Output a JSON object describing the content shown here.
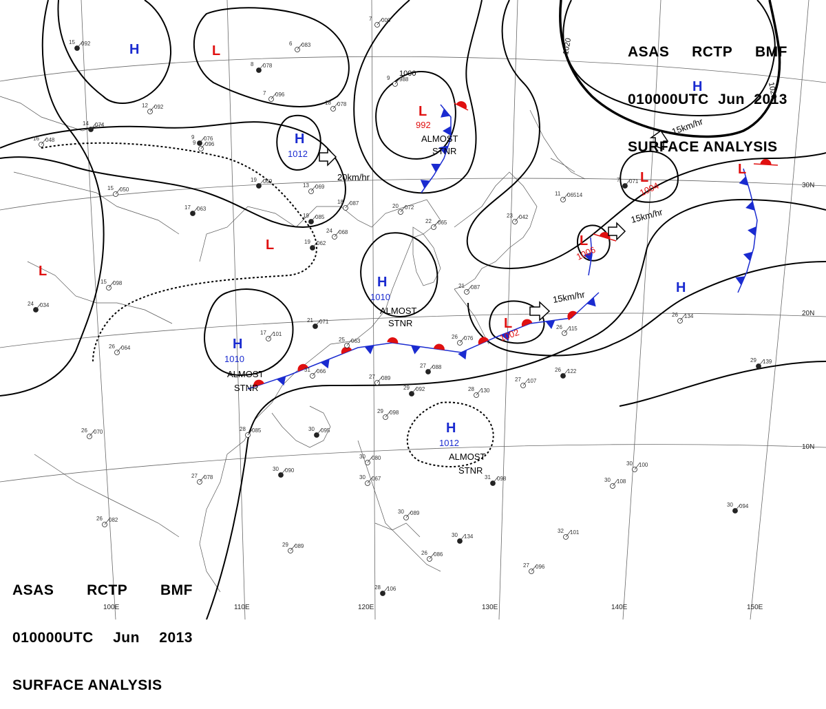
{
  "header": {
    "line1": [
      "ASAS",
      "RCTP",
      "BMF"
    ],
    "line2": [
      "010000UTC",
      "Jun",
      "2013"
    ],
    "line3": "SURFACE ANALYSIS"
  },
  "longitude_labels": [
    "100E",
    "110E",
    "120E",
    "130E",
    "140E",
    "150E"
  ],
  "latitude_labels": [
    "30N",
    "20N",
    "10N"
  ],
  "isobar_labels": [
    "1000",
    "1020",
    "1020"
  ],
  "pressure_centers": [
    {
      "type": "H",
      "value": ""
    },
    {
      "type": "L",
      "value": ""
    },
    {
      "type": "H",
      "value": "1012"
    },
    {
      "type": "L",
      "value": "992"
    },
    {
      "type": "H",
      "value": ""
    },
    {
      "type": "L",
      "value": ""
    },
    {
      "type": "L",
      "value": ""
    },
    {
      "type": "H",
      "value": "1010"
    },
    {
      "type": "H",
      "value": "1010"
    },
    {
      "type": "L",
      "value": "1004"
    },
    {
      "type": "L",
      "value": "1006"
    },
    {
      "type": "L",
      "value": "1002"
    },
    {
      "type": "L",
      "value": ""
    },
    {
      "type": "H",
      "value": ""
    },
    {
      "type": "H",
      "value": "1012"
    }
  ],
  "movement_labels": [
    "20km/hr",
    "15km/hr",
    "15km/hr",
    "15km/hr"
  ],
  "status_labels": [
    {
      "line1": "ALMOST",
      "line2": "STNR"
    },
    {
      "line1": "ALMOST",
      "line2": "STNR"
    },
    {
      "line1": "ALMOST",
      "line2": "STNR"
    },
    {
      "line1": "ALMOST",
      "line2": "STNR"
    }
  ],
  "stations": [
    {
      "t": "15",
      "p": "092"
    },
    {
      "t": "6",
      "p": "083"
    },
    {
      "t": "7",
      "p": "000"
    },
    {
      "t": "8",
      "p": "078"
    },
    {
      "t": "7",
      "p": "096"
    },
    {
      "t": "12",
      "p": "092"
    },
    {
      "t": "9",
      "p": "076"
    },
    {
      "t": "18",
      "p": "078"
    },
    {
      "t": "9",
      "p": "988"
    },
    {
      "t": "14",
      "p": "074"
    },
    {
      "t": "16",
      "p": "048"
    },
    {
      "t": "9",
      "p": "096"
    },
    {
      "t": "19",
      "p": "069"
    },
    {
      "t": "13",
      "p": "069"
    },
    {
      "t": "15",
      "p": "050"
    },
    {
      "t": "17",
      "p": "063"
    },
    {
      "t": "18",
      "p": "087"
    },
    {
      "t": "20",
      "p": "072"
    },
    {
      "t": "19",
      "p": "085"
    },
    {
      "t": "24",
      "p": "068"
    },
    {
      "t": "22",
      "p": "065"
    },
    {
      "t": "19",
      "p": "062"
    },
    {
      "t": "23",
      "p": "042"
    },
    {
      "t": "15",
      "p": "098"
    },
    {
      "t": "24",
      "p": "034"
    },
    {
      "t": "26",
      "p": "064"
    },
    {
      "t": "17",
      "p": "101"
    },
    {
      "t": "21",
      "p": "071"
    },
    {
      "t": "25",
      "p": "063"
    },
    {
      "t": "26",
      "p": "076"
    },
    {
      "t": "27",
      "p": "088"
    },
    {
      "t": "27",
      "p": "089"
    },
    {
      "t": "31",
      "p": "066"
    },
    {
      "t": "29",
      "p": "092"
    },
    {
      "t": "28",
      "p": "130"
    },
    {
      "t": "27",
      "p": "107"
    },
    {
      "t": "26",
      "p": "122"
    },
    {
      "t": "26",
      "p": "115"
    },
    {
      "t": "26",
      "p": "134"
    },
    {
      "t": "29",
      "p": "139"
    },
    {
      "t": "28",
      "p": "085"
    },
    {
      "t": "26",
      "p": "070"
    },
    {
      "t": "30",
      "p": "095"
    },
    {
      "t": "29",
      "p": "098"
    },
    {
      "t": "27",
      "p": "078"
    },
    {
      "t": "30",
      "p": "090"
    },
    {
      "t": "30",
      "p": "080"
    },
    {
      "t": "30",
      "p": "067"
    },
    {
      "t": "31",
      "p": "098"
    },
    {
      "t": "30",
      "p": "108"
    },
    {
      "t": "30",
      "p": "100"
    },
    {
      "t": "30",
      "p": "094"
    },
    {
      "t": "26",
      "p": "082"
    },
    {
      "t": "29",
      "p": "089"
    },
    {
      "t": "30",
      "p": "134"
    },
    {
      "t": "32",
      "p": "101"
    },
    {
      "t": "27",
      "p": "096"
    },
    {
      "t": "28",
      "p": "106"
    },
    {
      "t": "26",
      "p": "086"
    },
    {
      "t": "30",
      "p": "089"
    },
    {
      "t": "7",
      "p": "071"
    },
    {
      "t": "11",
      "p": "06514"
    },
    {
      "t": "21",
      "p": "087"
    }
  ],
  "colors": {
    "isobar": "#000000",
    "cold_front": "#1a2bd0",
    "warm_front": "#e01010",
    "high": "#1a2bd0",
    "low": "#e01010",
    "coast": "#555555",
    "grid": "#666666"
  }
}
